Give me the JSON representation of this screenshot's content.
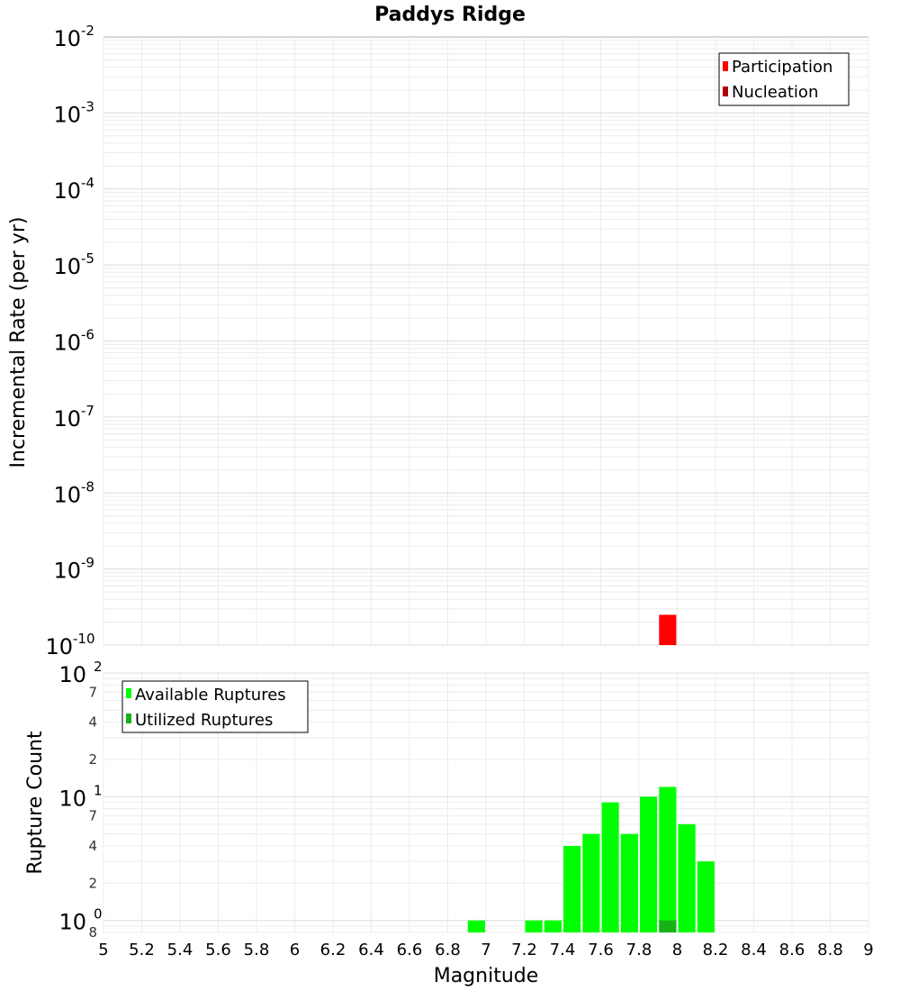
{
  "chart_data": [
    {
      "type": "bar",
      "title": "Paddys Ridge",
      "ylabel": "Incremental Rate (per yr)",
      "xlim": [
        5,
        9
      ],
      "ylim": [
        1e-10,
        0.01
      ],
      "yscale": "log",
      "grid": true,
      "legend_position": "top-right",
      "bar_width": 0.09,
      "y_ticks": [
        {
          "base": "10",
          "exp": "-2"
        },
        {
          "base": "10",
          "exp": "-3"
        },
        {
          "base": "10",
          "exp": "-4"
        },
        {
          "base": "10",
          "exp": "-5"
        },
        {
          "base": "10",
          "exp": "-6"
        },
        {
          "base": "10",
          "exp": "-7"
        },
        {
          "base": "10",
          "exp": "-8"
        },
        {
          "base": "10",
          "exp": "-9"
        },
        {
          "base": "10",
          "exp": "-10"
        }
      ],
      "series": [
        {
          "name": "Participation",
          "color": "#ff0000",
          "x": [
            7.95
          ],
          "values": [
            2.5e-10
          ]
        },
        {
          "name": "Nucleation",
          "color": "#b00000",
          "x": [],
          "values": []
        }
      ]
    },
    {
      "type": "bar",
      "xlabel": "Magnitude",
      "ylabel": "Rupture Count",
      "xlim": [
        5,
        9
      ],
      "ylim": [
        0.8,
        100
      ],
      "yscale": "log",
      "grid": true,
      "legend_position": "top-left",
      "bar_width": 0.09,
      "x_ticks": [
        "5",
        "5.2",
        "5.4",
        "5.6",
        "5.8",
        "6",
        "6.2",
        "6.4",
        "6.6",
        "6.8",
        "7",
        "7.2",
        "7.4",
        "7.6",
        "7.8",
        "8",
        "8.2",
        "8.4",
        "8.6",
        "8.8",
        "9"
      ],
      "y_major_ticks": [
        {
          "base": "10",
          "exp": "2"
        },
        {
          "base": "10",
          "exp": "1"
        },
        {
          "base": "10",
          "exp": "0"
        }
      ],
      "y_minor_ticks": [
        "7",
        "4",
        "2",
        "7",
        "4",
        "2",
        "8"
      ],
      "series": [
        {
          "name": "Available Ruptures",
          "color": "#00ff00",
          "x": [
            6.95,
            7.25,
            7.35,
            7.45,
            7.55,
            7.65,
            7.75,
            7.85,
            7.95,
            8.05,
            8.15
          ],
          "values": [
            1,
            1,
            1,
            4,
            5,
            9,
            5,
            10,
            12,
            6,
            3
          ]
        },
        {
          "name": "Utilized Ruptures",
          "color": "#16b316",
          "x": [
            7.95
          ],
          "values": [
            1
          ]
        }
      ]
    }
  ]
}
